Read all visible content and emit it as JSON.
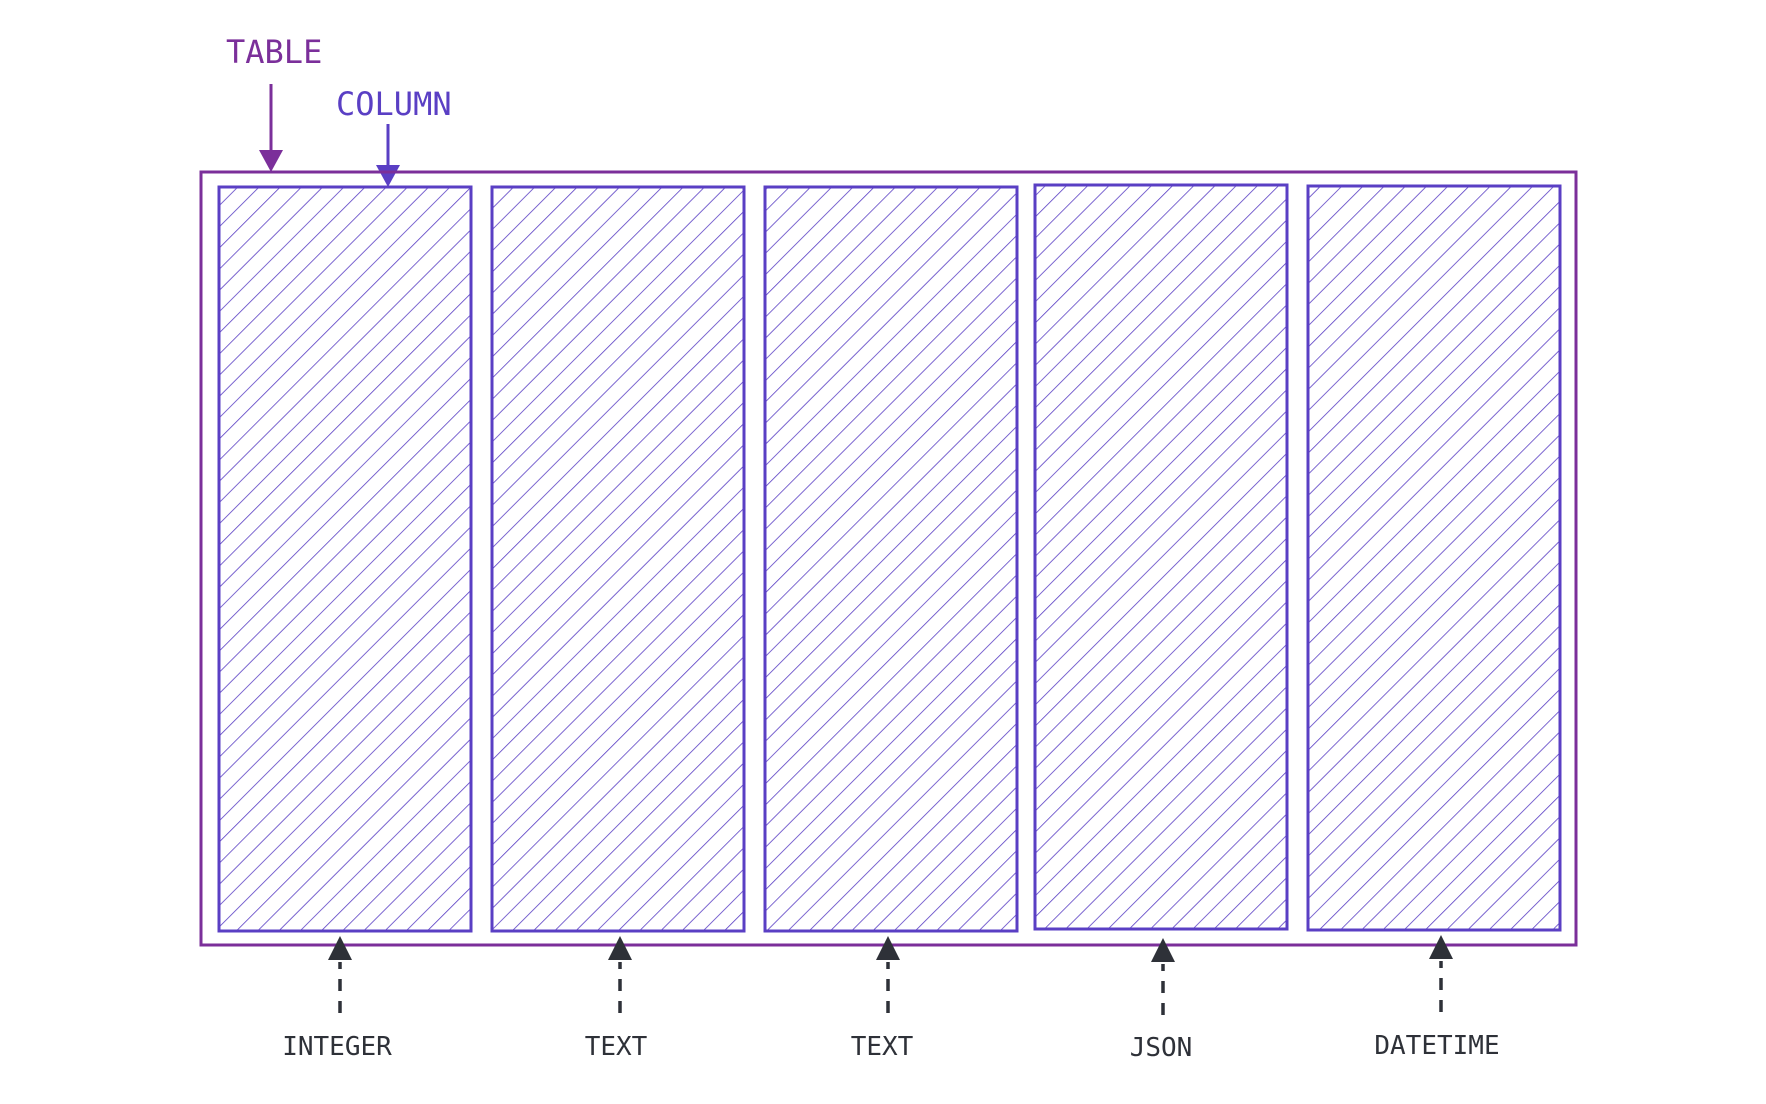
{
  "labels": {
    "table": "TABLE",
    "column": "COLUMN"
  },
  "columns": [
    {
      "type": "INTEGER"
    },
    {
      "type": "TEXT"
    },
    {
      "type": "TEXT"
    },
    {
      "type": "JSON"
    },
    {
      "type": "DATETIME"
    }
  ],
  "colors": {
    "table": "#7b2f9a",
    "column": "#5a3fc4",
    "hatch": "#5a3fc4",
    "type_label": "#2e3138"
  },
  "hatch": "diagonal"
}
